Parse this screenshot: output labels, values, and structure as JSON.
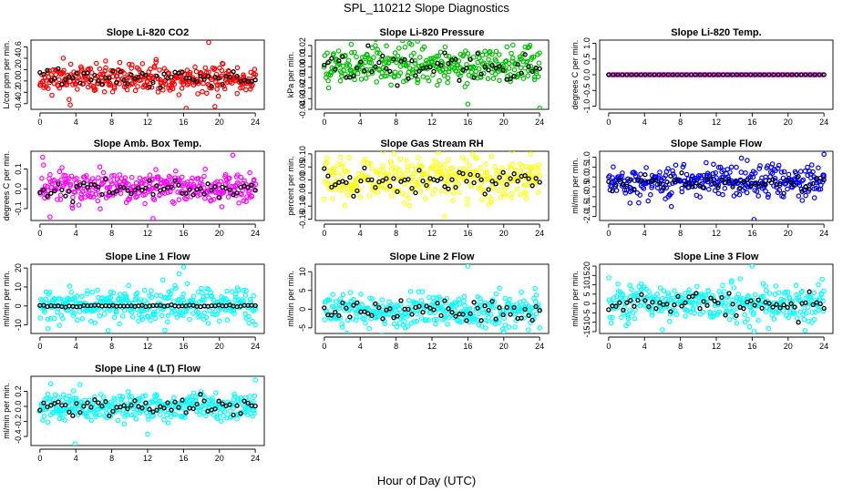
{
  "figure": {
    "title": "SPL_110212  Slope Diagnostics",
    "xlabel": "Hour of Day (UTC)"
  },
  "chart_data": [
    {
      "type": "scatter",
      "title": "Slope Li-820 CO2",
      "ylabel": "L/cor ppm per min.",
      "xlim": [
        -1,
        25
      ],
      "xticks": [
        0,
        4,
        8,
        12,
        16,
        20,
        24
      ],
      "ylim": [
        -0.5,
        0.72
      ],
      "yticks": [
        -0.4,
        -0.2,
        0.0,
        0.2,
        0.4,
        0.6
      ],
      "ytick_labels": [
        "-0.4",
        "-0.2",
        "0.0",
        "0.2",
        "0.4",
        "0.6"
      ],
      "color": "#ff0000",
      "noise": {
        "center": 0.03,
        "sd": 0.12,
        "n": 330,
        "seed": 11
      },
      "hourly": {
        "center": 0.05,
        "sd": 0.07,
        "n": 60,
        "seed": 12
      },
      "outliers": [
        {
          "x": 18.8,
          "y": 0.68
        },
        {
          "x": 16.3,
          "y": -0.48
        },
        {
          "x": 2.6,
          "y": 0.4
        },
        {
          "x": 19.5,
          "y": -0.45
        }
      ]
    },
    {
      "type": "scatter",
      "title": "Slope Li-820 Pressure",
      "ylabel": "kPa per min.",
      "xlim": [
        -1,
        25
      ],
      "xticks": [
        0,
        4,
        8,
        12,
        16,
        20,
        24
      ],
      "ylim": [
        -0.04,
        0.025
      ],
      "yticks": [
        -0.04,
        -0.03,
        -0.02,
        -0.01,
        0.0,
        0.01,
        0.02
      ],
      "ytick_labels": [
        "-0.04",
        "-0.03",
        "-0.02",
        "-0.01",
        "0.00",
        "0.01",
        "0.02"
      ],
      "color": "#00c000",
      "noise": {
        "center": 0.002,
        "sd": 0.009,
        "n": 330,
        "seed": 21
      },
      "hourly": {
        "center": 0.001,
        "sd": 0.006,
        "n": 60,
        "seed": 22
      },
      "outliers": [
        {
          "x": 10.4,
          "y": 0.024
        },
        {
          "x": 24.0,
          "y": -0.039
        },
        {
          "x": 16.0,
          "y": -0.035
        },
        {
          "x": 3.0,
          "y": 0.021
        }
      ]
    },
    {
      "type": "scatter",
      "title": "Slope Li-820 Temp.",
      "ylabel": "degrees C per min.",
      "xlim": [
        -1,
        25
      ],
      "xticks": [
        0,
        4,
        8,
        12,
        16,
        20,
        24
      ],
      "ylim": [
        -1.1,
        1.1
      ],
      "yticks": [
        -1.0,
        -0.5,
        0.0,
        0.5,
        1.0
      ],
      "ytick_labels": [
        "-1.0",
        "-0.5",
        "0.0",
        "0.5",
        "1.0"
      ],
      "color": "#ff00ff",
      "noise": {
        "center": 0.0,
        "sd": 0.0,
        "n": 130,
        "seed": 31
      },
      "hourly": {
        "center": 0.0,
        "sd": 0.0,
        "n": 48,
        "seed": 32
      },
      "outliers": []
    },
    {
      "type": "scatter",
      "title": "Slope Amb. Box Temp.",
      "ylabel": "degrees C per min.",
      "xlim": [
        -1,
        25
      ],
      "xticks": [
        0,
        4,
        8,
        12,
        16,
        20,
        24
      ],
      "ylim": [
        -0.16,
        0.19
      ],
      "yticks": [
        -0.1,
        0.0,
        0.1
      ],
      "ytick_labels": [
        "-0.1",
        "0.0",
        "0.1"
      ],
      "color": "#ff00ff",
      "noise": {
        "center": 0.005,
        "sd": 0.04,
        "n": 330,
        "seed": 41
      },
      "hourly": {
        "center": 0.0,
        "sd": 0.02,
        "n": 60,
        "seed": 42
      },
      "outliers": [
        {
          "x": 0.3,
          "y": 0.16
        },
        {
          "x": 0.4,
          "y": 0.12
        },
        {
          "x": 12.6,
          "y": -0.15
        },
        {
          "x": 21.5,
          "y": 0.17
        }
      ]
    },
    {
      "type": "scatter",
      "title": "Slope Gas Stream RH",
      "ylabel": "percent per min.",
      "xlim": [
        -1,
        25
      ],
      "xticks": [
        0,
        4,
        8,
        12,
        16,
        20,
        24
      ],
      "ylim": [
        -0.155,
        0.11
      ],
      "yticks": [
        -0.15,
        -0.1,
        -0.05,
        0.0,
        0.05,
        0.1
      ],
      "ytick_labels": [
        "-0.15",
        "-0.10",
        "-0.05",
        "0.00",
        "0.05",
        "0.10"
      ],
      "color": "#ffff00",
      "noise": {
        "center": 0.005,
        "sd": 0.04,
        "n": 330,
        "seed": 51
      },
      "hourly": {
        "center": 0.0,
        "sd": 0.025,
        "n": 60,
        "seed": 52
      },
      "outliers": [
        {
          "x": 13.4,
          "y": -0.14
        },
        {
          "x": 16.5,
          "y": 0.1
        },
        {
          "x": 23.0,
          "y": 0.1
        }
      ]
    },
    {
      "type": "scatter",
      "title": "Slope Sample Flow",
      "ylabel": "ml/min per min.",
      "xlim": [
        -1,
        25
      ],
      "xticks": [
        0,
        4,
        8,
        12,
        16,
        20,
        24
      ],
      "ylim": [
        -2.2,
        1.3
      ],
      "yticks": [
        -2.0,
        -1.5,
        -1.0,
        -0.5,
        0.0,
        0.5,
        1.0
      ],
      "ytick_labels": [
        "-2.0",
        "-1.5",
        "-1.0",
        "-0.5",
        "0.0",
        "0.5",
        "1.0"
      ],
      "color": "#0000ff",
      "noise": {
        "center": -0.25,
        "sd": 0.4,
        "n": 330,
        "seed": 61
      },
      "hourly": {
        "center": -0.3,
        "sd": 0.25,
        "n": 60,
        "seed": 62
      },
      "outliers": [
        {
          "x": 16.2,
          "y": -2.15
        },
        {
          "x": 24.0,
          "y": 1.15
        },
        {
          "x": 14.8,
          "y": 0.95
        }
      ]
    },
    {
      "type": "scatter",
      "title": "Slope Line 1 Flow",
      "ylabel": "ml/min per min.",
      "xlim": [
        -1,
        25
      ],
      "xticks": [
        0,
        4,
        8,
        12,
        16,
        20,
        24
      ],
      "ylim": [
        -14.5,
        22
      ],
      "yticks": [
        -10,
        0,
        10,
        20
      ],
      "ytick_labels": [
        "-10",
        "0",
        "10",
        "20"
      ],
      "color": "#00ffff",
      "noise": {
        "center": 0.5,
        "sd": 4.5,
        "n": 330,
        "seed": 71
      },
      "hourly": {
        "center": 0.0,
        "sd": 0.3,
        "n": 60,
        "seed": 72
      },
      "outliers": [
        {
          "x": 16.0,
          "y": 20.5
        },
        {
          "x": 15.5,
          "y": 17
        },
        {
          "x": 0.9,
          "y": -12
        },
        {
          "x": 7.6,
          "y": -13
        },
        {
          "x": 24,
          "y": -10
        }
      ]
    },
    {
      "type": "scatter",
      "title": "Slope Line 2 Flow",
      "ylabel": "ml/min per min.",
      "xlim": [
        -1,
        25
      ],
      "xticks": [
        0,
        4,
        8,
        12,
        16,
        20,
        24
      ],
      "ylim": [
        -6.5,
        12
      ],
      "yticks": [
        -5,
        0,
        5,
        10
      ],
      "ytick_labels": [
        "-5",
        "0",
        "5",
        "10"
      ],
      "color": "#00ffff",
      "noise": {
        "center": -0.5,
        "sd": 2.2,
        "n": 330,
        "seed": 81
      },
      "hourly": {
        "center": -0.3,
        "sd": 1.7,
        "n": 60,
        "seed": 82
      },
      "outliers": [
        {
          "x": 16.0,
          "y": 11.5
        },
        {
          "x": 23.5,
          "y": 5.5
        },
        {
          "x": 20,
          "y": -6
        }
      ]
    },
    {
      "type": "scatter",
      "title": "Slope Line 3 Flow",
      "ylabel": "ml/min per min.",
      "xlim": [
        -1,
        25
      ],
      "xticks": [
        0,
        4,
        8,
        12,
        16,
        20,
        24
      ],
      "ylim": [
        -16,
        21
      ],
      "yticks": [
        -15,
        -10,
        -5,
        0,
        5,
        10,
        15,
        20
      ],
      "ytick_labels": [
        "-15",
        "-10",
        "-5",
        "0",
        "5",
        "10",
        "15",
        "20"
      ],
      "color": "#00ffff",
      "noise": {
        "center": 0.5,
        "sd": 5.0,
        "n": 330,
        "seed": 91
      },
      "hourly": {
        "center": 0.0,
        "sd": 3.5,
        "n": 60,
        "seed": 92
      },
      "outliers": [
        {
          "x": 16.0,
          "y": 20
        },
        {
          "x": 16.2,
          "y": -15
        },
        {
          "x": 23.8,
          "y": 13
        },
        {
          "x": 6,
          "y": -14
        }
      ]
    },
    {
      "type": "scatter",
      "title": "Slope Line 4 (LT) Flow",
      "ylabel": "ml/min per min.",
      "xlim": [
        -1,
        25
      ],
      "xticks": [
        0,
        4,
        8,
        12,
        16,
        20,
        24
      ],
      "ylim": [
        -0.52,
        0.4
      ],
      "yticks": [
        -0.4,
        -0.2,
        0.0,
        0.2
      ],
      "ytick_labels": [
        "-0.4",
        "-0.2",
        "0.0",
        "0.2"
      ],
      "color": "#00ffff",
      "noise": {
        "center": 0.0,
        "sd": 0.09,
        "n": 330,
        "seed": 101
      },
      "hourly": {
        "center": 0.0,
        "sd": 0.06,
        "n": 60,
        "seed": 102
      },
      "outliers": [
        {
          "x": 3.9,
          "y": -0.5
        },
        {
          "x": 24.0,
          "y": 0.35
        },
        {
          "x": 12.0,
          "y": -0.37
        },
        {
          "x": 1.2,
          "y": 0.3
        }
      ]
    }
  ]
}
